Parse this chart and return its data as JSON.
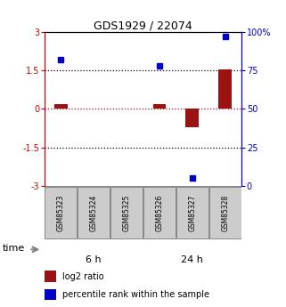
{
  "title": "GDS1929 / 22074",
  "samples": [
    "GSM85323",
    "GSM85324",
    "GSM85325",
    "GSM85326",
    "GSM85327",
    "GSM85328"
  ],
  "log2_ratio": [
    0.18,
    0.0,
    0.0,
    0.2,
    -0.72,
    1.55
  ],
  "percentile_rank": [
    82,
    null,
    null,
    78,
    5,
    97
  ],
  "ylim_left": [
    -3,
    3
  ],
  "ylim_right": [
    0,
    100
  ],
  "yticks_left": [
    -3,
    -1.5,
    0,
    1.5,
    3
  ],
  "yticks_right": [
    0,
    25,
    50,
    75,
    100
  ],
  "ytick_labels_left": [
    "-3",
    "-1.5",
    "0",
    "1.5",
    "3"
  ],
  "ytick_labels_right": [
    "0",
    "25",
    "50",
    "75",
    "100%"
  ],
  "bar_color_red": "#9b1212",
  "dot_color_blue": "#0000cc",
  "sample_box_color": "#cccccc",
  "sample_box_edge": "#888888",
  "group_6h_color": "#ccffcc",
  "group_24h_color": "#44dd44",
  "left_axis_color": "#cc0000",
  "right_axis_color": "#0000cc",
  "legend_red_label": "log2 ratio",
  "legend_blue_label": "percentile rank within the sample",
  "bar_width": 0.4
}
